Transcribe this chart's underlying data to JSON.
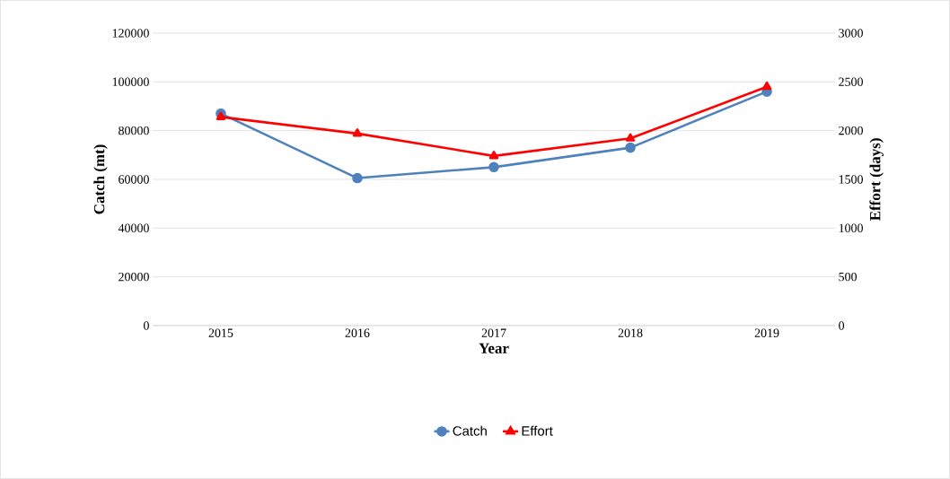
{
  "chart_data": {
    "type": "line",
    "xlabel": "Year",
    "ylabel": "Catch (mt)",
    "y2label": "Effort (days)",
    "categories": [
      "2015",
      "2016",
      "2017",
      "2018",
      "2019"
    ],
    "series": [
      {
        "name": "Catch",
        "color": "#4f81bd",
        "marker": "circle",
        "values": [
          87000,
          60500,
          65000,
          73000,
          96000
        ]
      },
      {
        "name": "Effort",
        "color": "#ff0000",
        "marker": "triangle",
        "axis": "y2",
        "values": [
          2140,
          1970,
          1740,
          1920,
          2450
        ]
      }
    ],
    "ylim": [
      0,
      120000
    ],
    "yticks": [
      0,
      20000,
      40000,
      60000,
      80000,
      100000,
      120000
    ],
    "y2lim": [
      0,
      3000
    ],
    "y2ticks": [
      0,
      500,
      1000,
      1500,
      2000,
      2500,
      3000
    ],
    "grid": "y",
    "legend": "bottom"
  }
}
